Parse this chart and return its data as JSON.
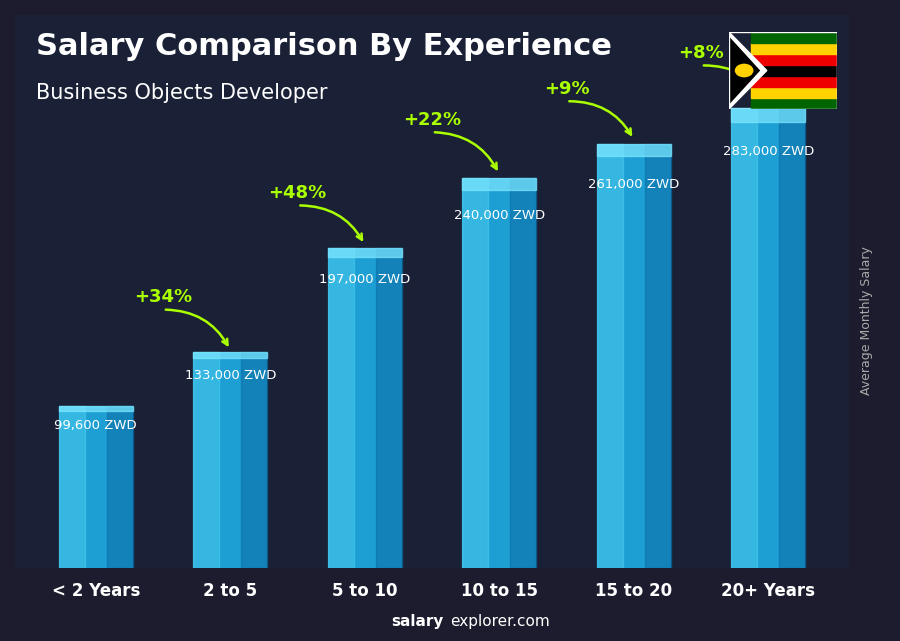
{
  "title": "Salary Comparison By Experience",
  "subtitle": "Business Objects Developer",
  "categories": [
    "< 2 Years",
    "2 to 5",
    "5 to 10",
    "10 to 15",
    "15 to 20",
    "20+ Years"
  ],
  "values": [
    99600,
    133000,
    197000,
    240000,
    261000,
    283000
  ],
  "salary_labels": [
    "99,600 ZWD",
    "133,000 ZWD",
    "197,000 ZWD",
    "240,000 ZWD",
    "261,000 ZWD",
    "283,000 ZWD"
  ],
  "pct_labels": [
    "+34%",
    "+48%",
    "+22%",
    "+9%",
    "+8%"
  ],
  "bar_color_top": "#29b6f6",
  "bar_color_mid": "#0288d1",
  "bar_color_bottom": "#01579b",
  "background_color": "#1a1a2e",
  "title_color": "#ffffff",
  "subtitle_color": "#ffffff",
  "salary_label_color": "#ffffff",
  "pct_color": "#aaff00",
  "xlabel_color": "#ffffff",
  "ylabel_text": "Average Monthly Salary",
  "footer_text": "salaryexplorer.com",
  "footer_bold": "salary",
  "ylim": [
    0,
    340000
  ],
  "bar_width": 0.55
}
